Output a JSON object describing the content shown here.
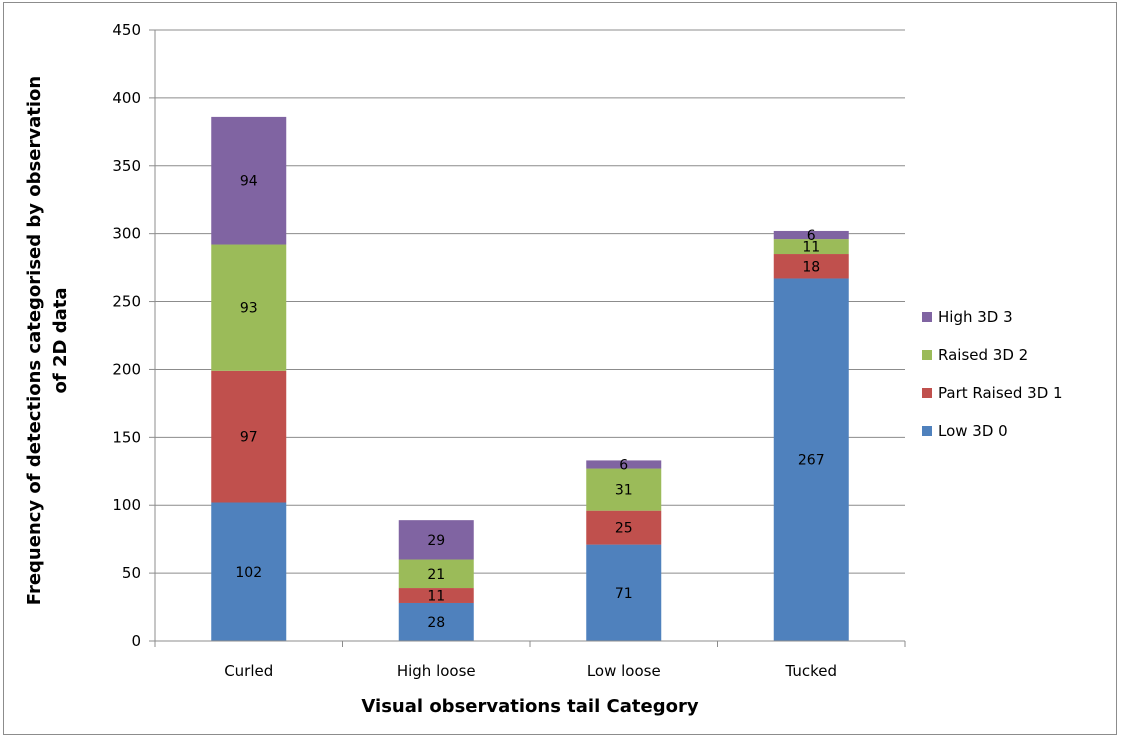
{
  "chart_data": {
    "type": "bar",
    "stacked": true,
    "categories": [
      "Curled",
      "High loose",
      "Low loose",
      "Tucked"
    ],
    "series": [
      {
        "name": "Low 3D 0",
        "color": "#4f81bd",
        "values": [
          102,
          28,
          71,
          267
        ]
      },
      {
        "name": "Part Raised 3D 1",
        "color": "#c0504d",
        "values": [
          97,
          11,
          25,
          18
        ]
      },
      {
        "name": "Raised 3D 2",
        "color": "#9bbb59",
        "values": [
          93,
          21,
          31,
          11
        ]
      },
      {
        "name": "High 3D 3",
        "color": "#8064a2",
        "values": [
          94,
          29,
          6,
          6
        ]
      }
    ],
    "xlabel": "Visual observations tail Category",
    "ylabel": "Frequency of detections categorised by observation of 2D data",
    "ylabel_lines": [
      "Frequency of detections categorised by observation",
      "of 2D data"
    ],
    "ylim": [
      0,
      450
    ],
    "yticks": [
      0,
      50,
      100,
      150,
      200,
      250,
      300,
      350,
      400,
      450
    ],
    "grid": true,
    "legend_position": "right",
    "legend_order": [
      "High 3D 3",
      "Raised 3D 2",
      "Part Raised 3D 1",
      "Low 3D 0"
    ]
  }
}
